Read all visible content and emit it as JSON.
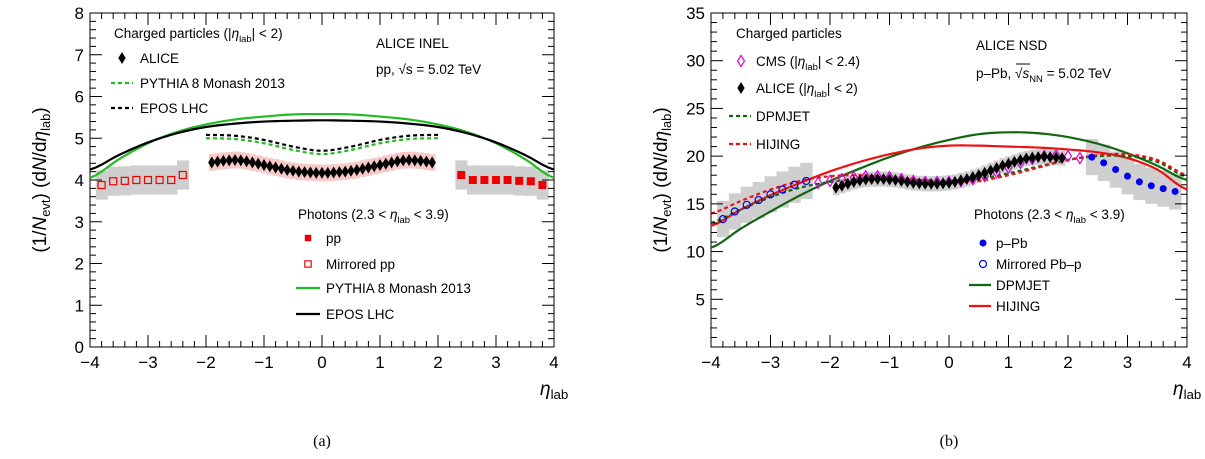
{
  "chart_data": [
    {
      "type": "scatter",
      "caption": "(a)",
      "xlabel": "η",
      "xlabel_sub": "lab",
      "ylabel": "(1/N_evt) (dN/dη_lab)",
      "xlim": [
        -4,
        4
      ],
      "ylim": [
        0,
        8
      ],
      "xticks": [
        "−4",
        "−3",
        "−2",
        "−1",
        "0",
        "1",
        "2",
        "3",
        "4"
      ],
      "yticks": [
        "0",
        "1",
        "2",
        "3",
        "4",
        "5",
        "6",
        "7",
        "8"
      ],
      "annotation_lines": [
        "ALICE INEL",
        "pp, √s = 5.02 TeV"
      ],
      "legend_charged_header": "Charged particles (|η_lab| < 2)",
      "legend_photons_header": "Photons (2.3 < η_lab < 3.9)",
      "series": [
        {
          "name": "ALICE",
          "kind": "marker",
          "marker": "diamond",
          "color": "#000000",
          "x": [
            -1.9,
            -1.8,
            -1.7,
            -1.6,
            -1.5,
            -1.4,
            -1.3,
            -1.2,
            -1.1,
            -1.0,
            -0.9,
            -0.8,
            -0.7,
            -0.6,
            -0.5,
            -0.4,
            -0.3,
            -0.2,
            -0.1,
            0.0,
            0.1,
            0.2,
            0.3,
            0.4,
            0.5,
            0.6,
            0.7,
            0.8,
            0.9,
            1.0,
            1.1,
            1.2,
            1.3,
            1.4,
            1.5,
            1.6,
            1.7,
            1.8,
            1.9
          ],
          "y": [
            4.42,
            4.44,
            4.46,
            4.47,
            4.48,
            4.47,
            4.45,
            4.42,
            4.39,
            4.36,
            4.33,
            4.3,
            4.27,
            4.24,
            4.22,
            4.2,
            4.19,
            4.18,
            4.17,
            4.17,
            4.17,
            4.18,
            4.19,
            4.2,
            4.22,
            4.24,
            4.27,
            4.3,
            4.33,
            4.36,
            4.39,
            4.42,
            4.45,
            4.47,
            4.48,
            4.47,
            4.46,
            4.44,
            4.42
          ],
          "syst": 0.2
        },
        {
          "name": "pp",
          "kind": "marker",
          "marker": "square",
          "color": "#ee0000",
          "x": [
            2.4,
            2.6,
            2.8,
            3.0,
            3.2,
            3.4,
            3.6,
            3.8
          ],
          "y": [
            4.12,
            4.0,
            4.0,
            4.0,
            4.0,
            3.98,
            3.97,
            3.88
          ],
          "syst": 0.35
        },
        {
          "name": "Mirrored pp",
          "kind": "marker",
          "marker": "open-square",
          "color": "#ee0000",
          "x": [
            -3.8,
            -3.6,
            -3.4,
            -3.2,
            -3.0,
            -2.8,
            -2.6,
            -2.4
          ],
          "y": [
            3.88,
            3.97,
            3.98,
            4.0,
            4.0,
            4.0,
            4.0,
            4.12
          ],
          "syst": 0.35
        },
        {
          "name": "PYTHIA 8 Monash 2013",
          "kind": "line",
          "style": "solid",
          "color": "#22bb22",
          "x": [
            -4,
            -3.5,
            -3,
            -2.5,
            -2,
            -1.5,
            -1,
            -0.5,
            0,
            0.5,
            1,
            1.5,
            2,
            2.5,
            3,
            3.5,
            4
          ],
          "y": [
            4.05,
            4.5,
            4.88,
            5.15,
            5.33,
            5.45,
            5.52,
            5.57,
            5.58,
            5.57,
            5.52,
            5.45,
            5.33,
            5.15,
            4.88,
            4.5,
            4.05
          ]
        },
        {
          "name": "EPOS LHC",
          "kind": "line",
          "style": "solid",
          "color": "#000000",
          "x": [
            -4,
            -3.5,
            -3,
            -2.5,
            -2,
            -1.5,
            -1,
            -0.5,
            0,
            0.5,
            1,
            1.5,
            2,
            2.5,
            3,
            3.5,
            4
          ],
          "y": [
            4.25,
            4.6,
            4.9,
            5.12,
            5.27,
            5.35,
            5.4,
            5.42,
            5.43,
            5.42,
            5.4,
            5.35,
            5.27,
            5.12,
            4.9,
            4.6,
            4.25
          ]
        },
        {
          "name": "PYTHIA 8 Monash 2013",
          "kind": "line",
          "style": "dashed",
          "color": "#22bb22",
          "x": [
            -2,
            -1.5,
            -1,
            -0.5,
            0,
            0.5,
            1,
            1.5,
            2
          ],
          "y": [
            5.0,
            4.98,
            4.88,
            4.72,
            4.62,
            4.72,
            4.88,
            4.98,
            5.0
          ]
        },
        {
          "name": "EPOS LHC",
          "kind": "line",
          "style": "dashed",
          "color": "#000000",
          "x": [
            -2,
            -1.5,
            -1,
            -0.5,
            0,
            0.5,
            1,
            1.5,
            2
          ],
          "y": [
            5.08,
            5.06,
            4.96,
            4.8,
            4.7,
            4.8,
            4.96,
            5.06,
            5.08
          ]
        }
      ]
    },
    {
      "type": "scatter",
      "caption": "(b)",
      "xlabel": "η",
      "xlabel_sub": "lab",
      "ylabel": "(1/N_evt) (dN/dη_lab)",
      "xlim": [
        -4,
        4
      ],
      "ylim": [
        0,
        35
      ],
      "xticks": [
        "−4",
        "−3",
        "−2",
        "−1",
        "0",
        "1",
        "2",
        "3",
        "4"
      ],
      "yticks": [
        "5",
        "10",
        "15",
        "20",
        "25",
        "30",
        "35"
      ],
      "annotation_lines": [
        "ALICE NSD",
        "p–Pb, √s_NN = 5.02 TeV"
      ],
      "legend_charged_header": "Charged particles",
      "legend_photons_header": "Photons (2.3 < η_lab < 3.9)",
      "series": [
        {
          "name": "CMS (|η_lab| < 2.4)",
          "kind": "marker",
          "marker": "open-diamond",
          "color": "#dd00dd",
          "x": [
            -2.2,
            -2.0,
            -1.8,
            -1.6,
            -1.4,
            -1.2,
            -1.0,
            -0.8,
            -0.6,
            -0.4,
            -0.2,
            0.0,
            0.2,
            0.4,
            0.6,
            0.8,
            1.0,
            1.2,
            1.4,
            1.6,
            1.8,
            2.0,
            2.2
          ],
          "y": [
            17.2,
            17.4,
            17.6,
            17.8,
            17.9,
            17.9,
            17.8,
            17.6,
            17.4,
            17.3,
            17.3,
            17.3,
            17.4,
            17.6,
            17.9,
            18.3,
            18.8,
            19.3,
            19.7,
            20.0,
            20.1,
            20.0,
            19.8
          ]
        },
        {
          "name": "ALICE (|η_lab| < 2)",
          "kind": "marker",
          "marker": "diamond",
          "color": "#000000",
          "x": [
            -1.9,
            -1.8,
            -1.7,
            -1.6,
            -1.5,
            -1.4,
            -1.3,
            -1.2,
            -1.1,
            -1.0,
            -0.9,
            -0.8,
            -0.7,
            -0.6,
            -0.5,
            -0.4,
            -0.3,
            -0.2,
            -0.1,
            0.0,
            0.1,
            0.2,
            0.3,
            0.4,
            0.5,
            0.6,
            0.7,
            0.8,
            0.9,
            1.0,
            1.1,
            1.2,
            1.3,
            1.4,
            1.5,
            1.6,
            1.7,
            1.8,
            1.9
          ],
          "y": [
            16.7,
            16.9,
            17.1,
            17.3,
            17.45,
            17.55,
            17.6,
            17.6,
            17.6,
            17.55,
            17.5,
            17.4,
            17.3,
            17.2,
            17.15,
            17.1,
            17.1,
            17.1,
            17.15,
            17.2,
            17.3,
            17.45,
            17.6,
            17.8,
            18.0,
            18.25,
            18.5,
            18.75,
            19.0,
            19.2,
            19.4,
            19.6,
            19.75,
            19.85,
            19.9,
            19.95,
            19.9,
            19.85,
            19.8
          ],
          "syst": 0.8
        },
        {
          "name": "p–Pb",
          "kind": "marker",
          "marker": "circle",
          "color": "#0000ee",
          "x": [
            2.4,
            2.6,
            2.8,
            3.0,
            3.2,
            3.4,
            3.6,
            3.8
          ],
          "y": [
            19.9,
            19.3,
            18.6,
            17.9,
            17.3,
            16.9,
            16.6,
            16.3
          ],
          "syst": 1.9
        },
        {
          "name": "Mirrored Pb–p",
          "kind": "marker",
          "marker": "open-circle",
          "color": "#0000ee",
          "x": [
            -3.8,
            -3.6,
            -3.4,
            -3.2,
            -3.0,
            -2.8,
            -2.6,
            -2.4
          ],
          "y": [
            13.4,
            14.2,
            14.9,
            15.4,
            16.0,
            16.5,
            17.0,
            17.4
          ],
          "syst": 1.9
        },
        {
          "name": "DPMJET",
          "kind": "line",
          "style": "solid",
          "color": "#116611",
          "x": [
            -4,
            -3.5,
            -3,
            -2.5,
            -2,
            -1.5,
            -1,
            -0.5,
            0,
            0.5,
            1,
            1.5,
            2,
            2.5,
            3,
            3.5,
            4
          ],
          "y": [
            10.4,
            12.4,
            14.2,
            15.9,
            17.4,
            18.7,
            19.9,
            20.9,
            21.7,
            22.3,
            22.5,
            22.4,
            22.0,
            21.3,
            20.3,
            19.0,
            17.5
          ]
        },
        {
          "name": "HIJING",
          "kind": "line",
          "style": "solid",
          "color": "#ee1111",
          "x": [
            -4,
            -3.5,
            -3,
            -2.5,
            -2,
            -1.5,
            -1,
            -0.5,
            0,
            0.5,
            1,
            1.5,
            2,
            2.5,
            3,
            3.5,
            4
          ],
          "y": [
            12.7,
            14.4,
            15.9,
            17.2,
            18.4,
            19.4,
            20.2,
            20.8,
            21.1,
            21.1,
            21.0,
            20.9,
            20.7,
            20.4,
            19.8,
            18.6,
            16.5
          ]
        },
        {
          "name": "DPMJET",
          "kind": "line",
          "style": "dashed",
          "color": "#116611",
          "x": [
            -4,
            -3.5,
            -3,
            -2.5,
            -2,
            -1.5,
            -1,
            -0.5,
            0,
            0.5,
            1,
            1.5,
            2,
            2.5,
            3,
            3.5,
            4
          ],
          "y": [
            13.0,
            14.4,
            15.7,
            16.7,
            17.3,
            17.6,
            17.6,
            17.5,
            17.4,
            17.6,
            18.2,
            18.9,
            19.6,
            20.0,
            20.0,
            19.4,
            17.8
          ]
        },
        {
          "name": "HIJING",
          "kind": "line",
          "style": "dashed",
          "color": "#ee1111",
          "x": [
            -4,
            -3.5,
            -3,
            -2.5,
            -2,
            -1.5,
            -1,
            -0.5,
            0,
            0.5,
            1,
            1.5,
            2,
            2.5,
            3,
            3.5,
            4
          ],
          "y": [
            14.0,
            15.3,
            16.5,
            17.4,
            17.9,
            18.0,
            17.8,
            17.5,
            17.3,
            17.4,
            18.0,
            18.8,
            19.6,
            20.1,
            20.2,
            19.6,
            18.0
          ]
        }
      ]
    }
  ]
}
